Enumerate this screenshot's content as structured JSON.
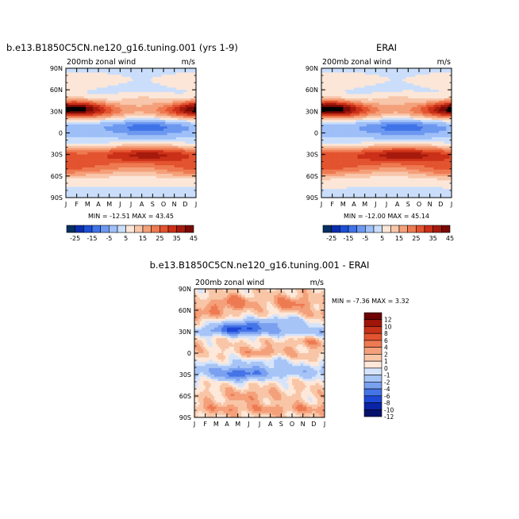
{
  "chart_data": [
    {
      "type": "heatmap",
      "title": "b.e13.B1850C5CN.ne120_g16.tuning.001 (yrs 1-9)",
      "subtitle": "200mb zonal wind",
      "units": "m/s",
      "x_ticks": [
        "J",
        "F",
        "M",
        "A",
        "M",
        "J",
        "J",
        "A",
        "S",
        "O",
        "N",
        "D",
        "J"
      ],
      "y_ticks": [
        "90N",
        "60N",
        "30N",
        "0",
        "30S",
        "60S",
        "90S"
      ],
      "ylim": [
        -90,
        90
      ],
      "stats_text": "MIN = -12.51  MAX =  43.45",
      "min": -12.51,
      "max": 43.45,
      "colorbar_levels": [
        -25,
        -20,
        -15,
        -10,
        -5,
        0,
        5,
        10,
        15,
        20,
        25,
        30,
        35,
        40,
        45
      ],
      "colorbar_labels": [
        "-25",
        "-15",
        "-5",
        "5",
        "15",
        "25",
        "35",
        "45"
      ],
      "features": [
        {
          "lat": 30,
          "month": 1,
          "value": 43
        },
        {
          "lat": 30,
          "month": 12,
          "value": 40
        },
        {
          "lat": -30,
          "month": 8,
          "value": 38
        },
        {
          "lat": -45,
          "month": 1,
          "value": 30
        },
        {
          "lat": 5,
          "month": 8,
          "value": -12
        }
      ]
    },
    {
      "type": "heatmap",
      "title": "ERAI",
      "subtitle": "200mb zonal wind",
      "units": "m/s",
      "x_ticks": [
        "J",
        "F",
        "M",
        "A",
        "M",
        "J",
        "J",
        "A",
        "S",
        "O",
        "N",
        "D",
        "J"
      ],
      "y_ticks": [
        "90N",
        "60N",
        "30N",
        "0",
        "30S",
        "60S",
        "90S"
      ],
      "ylim": [
        -90,
        90
      ],
      "stats_text": "MIN = -12.00  MAX =  45.14",
      "min": -12.0,
      "max": 45.14,
      "colorbar_levels": [
        -25,
        -20,
        -15,
        -10,
        -5,
        0,
        5,
        10,
        15,
        20,
        25,
        30,
        35,
        40,
        45
      ],
      "colorbar_labels": [
        "-25",
        "-15",
        "-5",
        "5",
        "15",
        "25",
        "35",
        "45"
      ],
      "features": [
        {
          "lat": 30,
          "month": 1,
          "value": 45
        },
        {
          "lat": 30,
          "month": 12,
          "value": 42
        },
        {
          "lat": -30,
          "month": 8,
          "value": 40
        },
        {
          "lat": -45,
          "month": 1,
          "value": 32
        },
        {
          "lat": 5,
          "month": 8,
          "value": -12
        }
      ]
    },
    {
      "type": "heatmap",
      "title": "b.e13.B1850C5CN.ne120_g16.tuning.001 - ERAI",
      "subtitle": "200mb zonal wind",
      "units": "m/s",
      "x_ticks": [
        "J",
        "F",
        "M",
        "A",
        "M",
        "J",
        "J",
        "A",
        "S",
        "O",
        "N",
        "D",
        "J"
      ],
      "y_ticks": [
        "90N",
        "60N",
        "30N",
        "0",
        "30S",
        "60S",
        "90S"
      ],
      "ylim": [
        -90,
        90
      ],
      "stats_text": "MIN =  -7.36  MAX =   3.32",
      "min": -7.36,
      "max": 3.32,
      "colorbar_levels": [
        -12,
        -10,
        -8,
        -6,
        -4,
        -2,
        -1,
        0,
        1,
        2,
        4,
        6,
        8,
        10,
        12
      ],
      "colorbar_labels": [
        "12",
        "10",
        "8",
        "6",
        "4",
        "2",
        "1",
        "0",
        "-1",
        "-2",
        "-4",
        "-6",
        "-8",
        "-10",
        "-12"
      ],
      "features": [
        {
          "lat": 35,
          "month": 4,
          "value": -7
        },
        {
          "lat": -30,
          "month": 4,
          "value": -5
        },
        {
          "lat": 70,
          "month": 4,
          "value": 3
        },
        {
          "lat": 70,
          "month": 8,
          "value": 2
        },
        {
          "lat": 0,
          "month": 6,
          "value": 2
        }
      ]
    }
  ],
  "colors": {
    "full_field": [
      "#053061",
      "#0b2db0",
      "#1c4fd6",
      "#3f73e8",
      "#6d98f0",
      "#9ebff7",
      "#cadefb",
      "#fce6d8",
      "#f8c6aa",
      "#f4a07a",
      "#ee7a52",
      "#e3532f",
      "#cb3018",
      "#a61a0d",
      "#7a0a05"
    ],
    "difference": [
      "#05116b",
      "#0a24a8",
      "#1e48d6",
      "#4574e6",
      "#7aa0f0",
      "#a7c4f6",
      "#d6e4fb",
      "#fde8da",
      "#f8c6a7",
      "#f4a07a",
      "#ee7a52",
      "#e3532f",
      "#c83219",
      "#a0140a",
      "#6e0303"
    ]
  }
}
